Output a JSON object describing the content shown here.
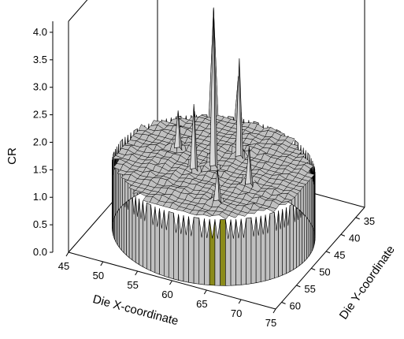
{
  "chart_data": {
    "type": "surface3d",
    "zlabel": "CR",
    "xlabel": "Die X-coordinate",
    "ylabel": "Die Y-coordinate",
    "z_ticks": [
      "0.0",
      "0.5",
      "1.0",
      "1.5",
      "2.0",
      "2.5",
      "3.0",
      "3.5",
      "4.0"
    ],
    "x_ticks": [
      "45",
      "50",
      "55",
      "60",
      "65",
      "70",
      "75"
    ],
    "y_ticks": [
      "35",
      "40",
      "45",
      "50",
      "55",
      "60"
    ],
    "zlim": [
      0,
      4.2
    ],
    "xlim": [
      45,
      75
    ],
    "ylim": [
      32,
      62
    ],
    "surface_level": 1.2,
    "surface_color": "#c0c0c0",
    "edge_color": "#000000",
    "accent_color": "#8b8b1a",
    "peaks": [
      {
        "x": 60,
        "y": 48,
        "cr": 4.1
      },
      {
        "x": 62,
        "y": 44,
        "cr": 3.0
      },
      {
        "x": 58,
        "y": 50,
        "cr": 2.4
      },
      {
        "x": 54,
        "y": 46,
        "cr": 1.9
      },
      {
        "x": 66,
        "y": 50,
        "cr": 1.9
      },
      {
        "x": 64,
        "y": 56,
        "cr": 1.8
      }
    ]
  }
}
